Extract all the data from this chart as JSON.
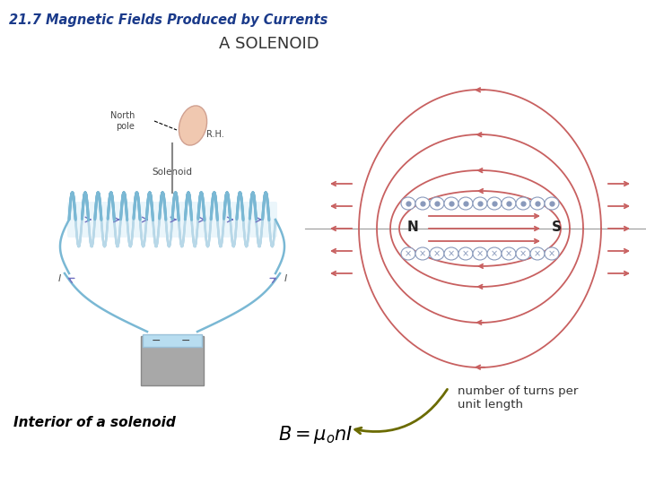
{
  "title_text": "21.7 Magnetic Fields Produced by Currents",
  "title_color": "#1a3a8a",
  "title_fontsize": 10.5,
  "solenoid_title": "A SOLENOID",
  "solenoid_title_color": "#333333",
  "solenoid_title_fontsize": 13,
  "label_interior": "Interior of a solenoid",
  "label_interior_color": "#000000",
  "label_interior_fontsize": 11,
  "label_turns": "number of turns per\nunit length",
  "label_turns_color": "#333333",
  "label_turns_fontsize": 9.5,
  "arrow_color": "#6b6b00",
  "bg_color": "#ffffff",
  "field_color": "#c86060",
  "coil_color": "#7ab8d4",
  "coil_back_color": "#b8d8e8",
  "cross_dot_color": "#8899bb"
}
